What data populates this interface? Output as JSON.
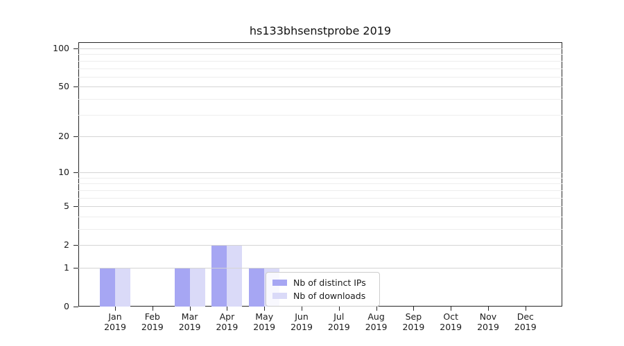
{
  "chart_data": {
    "type": "bar",
    "title": "hs133bhsenstprobe 2019",
    "categories": [
      "Jan 2019",
      "Feb 2019",
      "Mar 2019",
      "Apr 2019",
      "May 2019",
      "Jun 2019",
      "Jul 2019",
      "Aug 2019",
      "Sep 2019",
      "Oct 2019",
      "Nov 2019",
      "Dec 2019"
    ],
    "series": [
      {
        "name": "Nb of distinct IPs",
        "color": "#a6a6f3",
        "values": [
          1,
          0,
          1,
          2,
          1,
          0,
          0,
          0,
          0,
          0,
          0,
          0
        ]
      },
      {
        "name": "Nb of downloads",
        "color": "#dadaf8",
        "values": [
          1,
          0,
          1,
          2,
          1,
          0,
          0,
          0,
          0,
          0,
          0,
          0
        ]
      }
    ],
    "xlabel": "",
    "ylabel": "",
    "yscale": "log1p",
    "ylim": [
      0,
      112
    ],
    "yticks_major": [
      0,
      1,
      2,
      5,
      10,
      20,
      50,
      100
    ],
    "yticks_minor": [
      3,
      4,
      6,
      7,
      8,
      9,
      30,
      40,
      60,
      70,
      80,
      90
    ],
    "grid": "both",
    "legend_position": "lower center",
    "colors": {
      "grid_major": "#d4d4d4",
      "grid_minor": "#ededed",
      "axis": "#262626",
      "text": "#1a1a1a"
    }
  }
}
